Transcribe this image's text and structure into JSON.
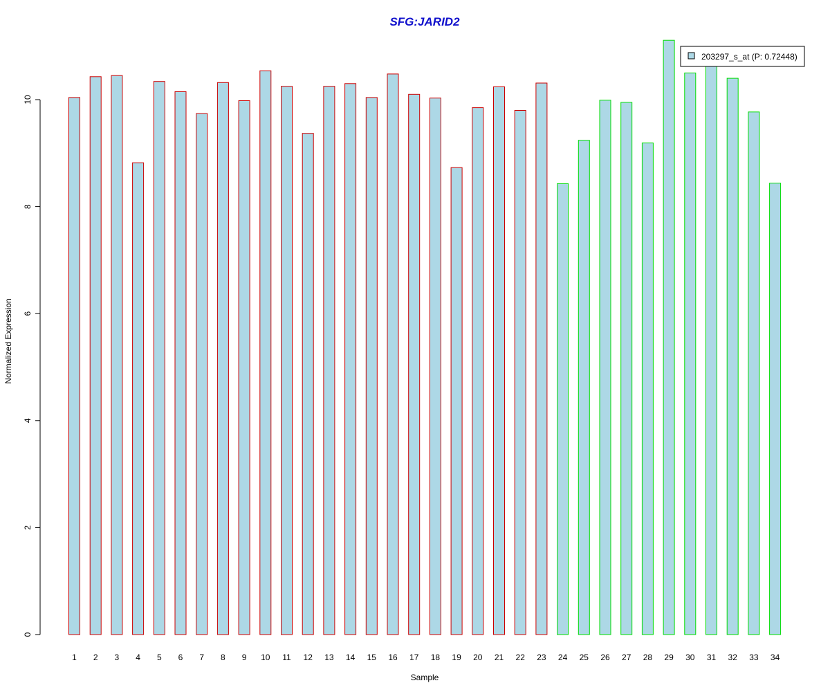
{
  "chart_data": {
    "type": "bar",
    "title": "SFG:JARID2",
    "xlabel": "Sample",
    "ylabel": "Normalized Expression",
    "ylim": [
      0,
      11.2
    ],
    "yticks": [
      0,
      2,
      4,
      6,
      8,
      10
    ],
    "grid": false,
    "legend_position": "top-right",
    "categories": [
      "1",
      "2",
      "3",
      "4",
      "5",
      "6",
      "7",
      "8",
      "9",
      "10",
      "11",
      "12",
      "13",
      "14",
      "15",
      "16",
      "17",
      "18",
      "19",
      "20",
      "21",
      "22",
      "23",
      "24",
      "25",
      "26",
      "27",
      "28",
      "29",
      "30",
      "31",
      "32",
      "33",
      "34"
    ],
    "series": [
      {
        "name": "203297_s_at (P: 0.72448)",
        "values": [
          10.04,
          10.43,
          10.45,
          8.82,
          10.34,
          10.15,
          9.74,
          10.32,
          9.98,
          10.54,
          10.25,
          9.37,
          10.25,
          10.3,
          10.04,
          10.48,
          10.1,
          10.03,
          8.73,
          9.85,
          10.24,
          9.8,
          10.31,
          8.43,
          9.24,
          9.99,
          9.95,
          9.19,
          11.11,
          10.5,
          10.65,
          10.4,
          9.77,
          8.44
        ]
      }
    ],
    "groups": [
      {
        "from": 1,
        "to": 23,
        "border_color": "#cc0000"
      },
      {
        "from": 24,
        "to": 34,
        "border_color": "#00dd00"
      }
    ],
    "bar_fill": "#add8e6",
    "title_color": "#1010cc"
  }
}
